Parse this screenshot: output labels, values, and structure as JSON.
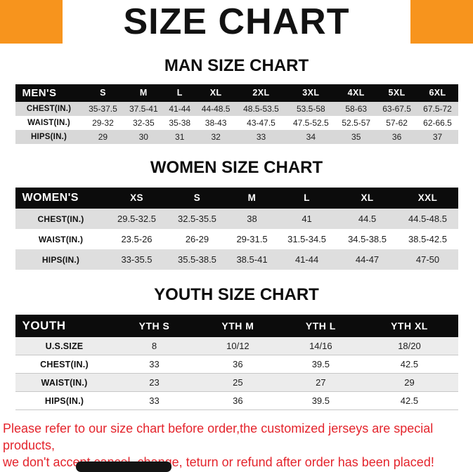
{
  "page": {
    "title": "SIZE CHART",
    "accent_color": "#F7941D",
    "footer_text_color": "#E4242C",
    "table_header_bg": "#0C0C0C"
  },
  "footer": {
    "line1": "Please refer to our size chart before order,the customized jerseys are special products,",
    "line2": "we don't accept cancel, change, teturn or refund after order has been placed!"
  },
  "chart_data": [
    {
      "type": "table",
      "title": "MAN SIZE CHART",
      "columns": [
        "MEN'S",
        "S",
        "M",
        "L",
        "XL",
        "2XL",
        "3XL",
        "4XL",
        "5XL",
        "6XL"
      ],
      "rows": [
        [
          "CHEST(IN.)",
          "35-37.5",
          "37.5-41",
          "41-44",
          "44-48.5",
          "48.5-53.5",
          "53.5-58",
          "58-63",
          "63-67.5",
          "67.5-72"
        ],
        [
          "WAIST(IN.)",
          "29-32",
          "32-35",
          "35-38",
          "38-43",
          "43-47.5",
          "47.5-52.5",
          "52.5-57",
          "57-62",
          "62-66.5"
        ],
        [
          "HIPS(IN.)",
          "29",
          "30",
          "31",
          "32",
          "33",
          "34",
          "35",
          "36",
          "37"
        ]
      ]
    },
    {
      "type": "table",
      "title": "WOMEN SIZE CHART",
      "columns": [
        "WOMEN'S",
        "XS",
        "S",
        "M",
        "L",
        "XL",
        "XXL"
      ],
      "rows": [
        [
          "CHEST(IN.)",
          "29.5-32.5",
          "32.5-35.5",
          "38",
          "41",
          "44.5",
          "44.5-48.5"
        ],
        [
          "WAIST(IN.)",
          "23.5-26",
          "26-29",
          "29-31.5",
          "31.5-34.5",
          "34.5-38.5",
          "38.5-42.5"
        ],
        [
          "HIPS(IN.)",
          "33-35.5",
          "35.5-38.5",
          "38.5-41",
          "41-44",
          "44-47",
          "47-50"
        ]
      ]
    },
    {
      "type": "table",
      "title": "YOUTH SIZE CHART",
      "columns": [
        "YOUTH",
        "YTH S",
        "YTH M",
        "YTH L",
        "YTH XL"
      ],
      "rows": [
        [
          "U.S.SIZE",
          "8",
          "10/12",
          "14/16",
          "18/20"
        ],
        [
          "CHEST(IN.)",
          "33",
          "36",
          "39.5",
          "42.5"
        ],
        [
          "WAIST(IN.)",
          "23",
          "25",
          "27",
          "29"
        ],
        [
          "HIPS(IN.)",
          "33",
          "36",
          "39.5",
          "42.5"
        ]
      ]
    }
  ]
}
